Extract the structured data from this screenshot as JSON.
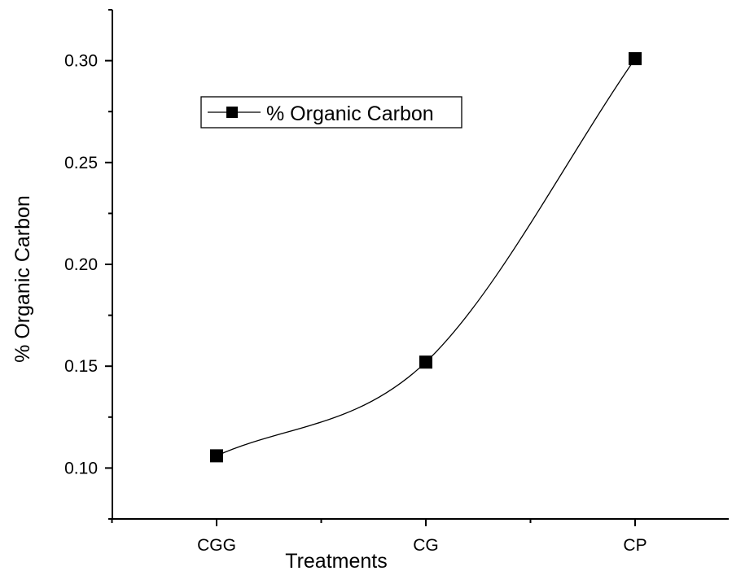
{
  "chart_data": {
    "type": "line",
    "categories": [
      "CGG",
      "CG",
      "CP"
    ],
    "series": [
      {
        "name": "% Organic Carbon",
        "values": [
          0.106,
          0.152,
          0.301
        ],
        "color": "#000000",
        "marker": "square",
        "smooth": true
      }
    ],
    "xlabel": "Treatments",
    "ylabel": "% Organic Carbon",
    "ylim": [
      0.075,
      0.325
    ],
    "yticks": [
      0.1,
      0.15,
      0.2,
      0.25,
      0.3
    ],
    "ytick_labels": [
      "0.10",
      "0.15",
      "0.20",
      "0.25",
      "0.30"
    ],
    "grid": false,
    "legend": {
      "placement": "top-left",
      "entries": [
        "% Organic Carbon"
      ]
    }
  }
}
